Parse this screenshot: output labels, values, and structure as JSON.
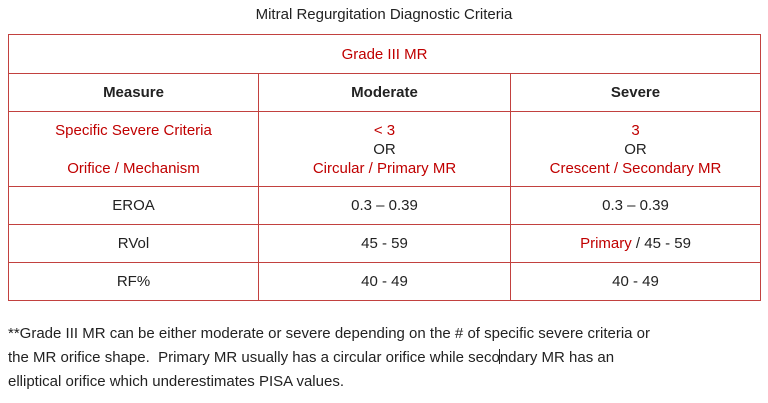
{
  "title": "Mitral Regurgitation Diagnostic Criteria",
  "table": {
    "grade_label": "Grade III MR",
    "headers": [
      "Measure",
      "Moderate",
      "Severe"
    ],
    "criteria": {
      "measure_line1": "Specific Severe Criteria",
      "measure_line2": "Orifice / Mechanism",
      "moderate_line1": "< 3",
      "moderate_line2": "OR",
      "moderate_line3": "Circular / Primary MR",
      "severe_line1": "3",
      "severe_line2": "OR",
      "severe_line3": "Crescent / Secondary MR"
    },
    "rows": [
      {
        "measure": "EROA",
        "moderate": "0.3 – 0.39",
        "severe_prefix": "",
        "severe": "0.3 – 0.39"
      },
      {
        "measure": "RVol",
        "moderate": "45 - 59",
        "severe_prefix": "Primary",
        "severe": " / 45 - 59"
      },
      {
        "measure": "RF%",
        "moderate": "40 - 49",
        "severe_prefix": "",
        "severe": "40 - 49"
      }
    ]
  },
  "footnote": {
    "line1": "**Grade III MR can be either moderate or severe depending on the # of specific severe criteria or",
    "line2_before_cursor": "the MR orifice shape.  Primary MR usually has a circular orifice while seco",
    "line2_after_cursor": "ndary MR has an",
    "line3": "elliptical orifice which underestimates PISA values."
  },
  "colors": {
    "accent_red": "#c00000",
    "border": "#c2413f",
    "text": "#222222"
  }
}
